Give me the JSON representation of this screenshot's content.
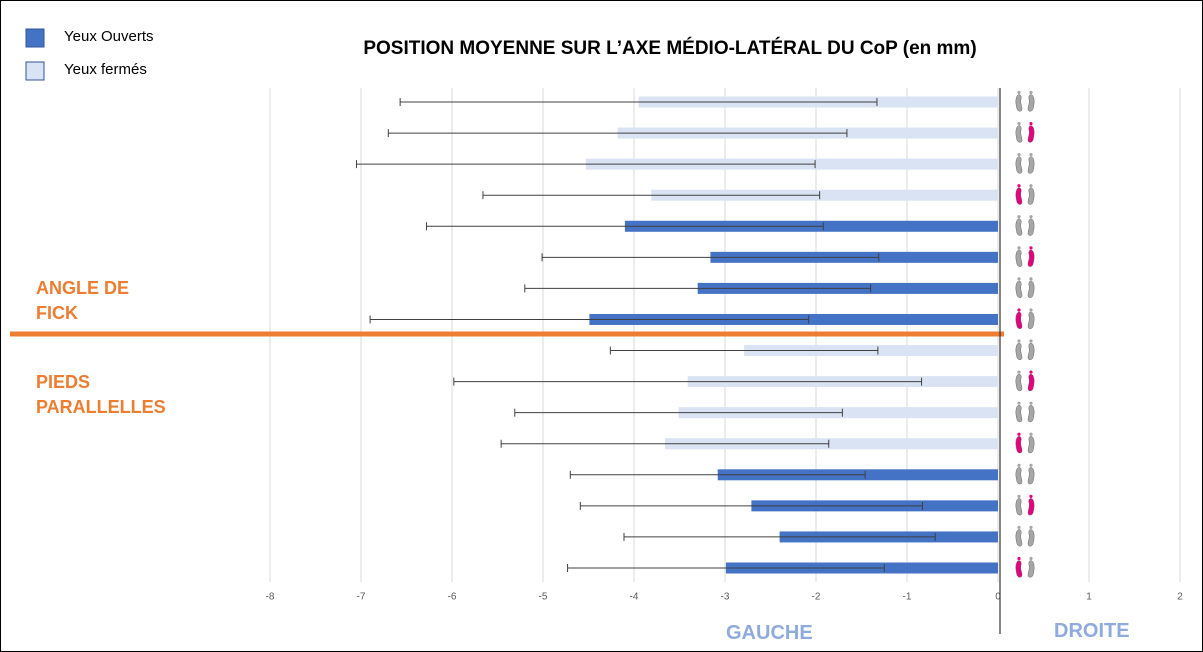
{
  "chart_data": {
    "type": "bar",
    "orientation": "horizontal",
    "title": "POSITION MOYENNE SUR L’AXE MÉDIO-LATÉRAL DU CoP (en mm)",
    "categories": [
      null,
      null,
      null,
      null,
      null,
      null,
      null,
      null,
      null,
      null,
      null,
      null,
      null,
      null,
      null,
      null
    ],
    "series": [
      {
        "name": "Yeux Ouverts",
        "color": "#4472c4",
        "values": [
          null,
          null,
          null,
          null,
          -4.1,
          -3.16,
          -3.3,
          -4.49,
          null,
          null,
          null,
          null,
          -3.08,
          -2.71,
          -2.4,
          -2.99
        ],
        "errors": [
          null,
          null,
          null,
          null,
          2.18,
          1.85,
          1.9,
          2.41,
          null,
          null,
          null,
          null,
          1.62,
          1.88,
          1.71,
          1.74
        ]
      },
      {
        "name": "Yeux fermés",
        "color": "#dae3f3",
        "values": [
          -3.95,
          -4.18,
          -4.53,
          -3.81,
          null,
          null,
          null,
          null,
          -2.79,
          -3.41,
          -3.51,
          -3.66,
          null,
          null,
          null,
          null
        ],
        "errors": [
          2.62,
          2.52,
          2.52,
          1.85,
          null,
          null,
          null,
          null,
          1.47,
          2.57,
          1.8,
          1.8,
          null,
          null,
          null,
          null
        ]
      }
    ],
    "xlim": [
      -8,
      2
    ],
    "xticks": [
      -8,
      -7,
      -6,
      -5,
      -4,
      -3,
      -2,
      -1,
      0,
      1,
      2
    ],
    "grid": true,
    "legend": "top-left",
    "annotations": [
      "ANGLE DE FICK",
      "PIEDS PARALLELLES",
      "GAUCHE",
      "DROITE"
    ]
  }
}
